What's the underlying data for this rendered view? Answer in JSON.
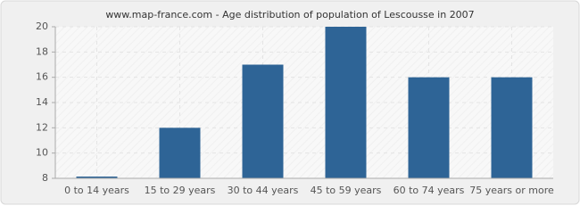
{
  "chart_data": {
    "type": "bar",
    "title": "www.map-france.com - Age distribution of population of Lescousse in 2007",
    "categories": [
      "0 to 14 years",
      "15 to 29 years",
      "30 to 44 years",
      "45 to 59 years",
      "60 to 74 years",
      "75 years or more"
    ],
    "values": [
      8,
      12,
      17,
      20,
      16,
      16
    ],
    "color": "#2e6496",
    "ylim": [
      8,
      20
    ],
    "yticks": [
      8,
      10,
      12,
      14,
      16,
      18,
      20
    ],
    "grid": true
  }
}
